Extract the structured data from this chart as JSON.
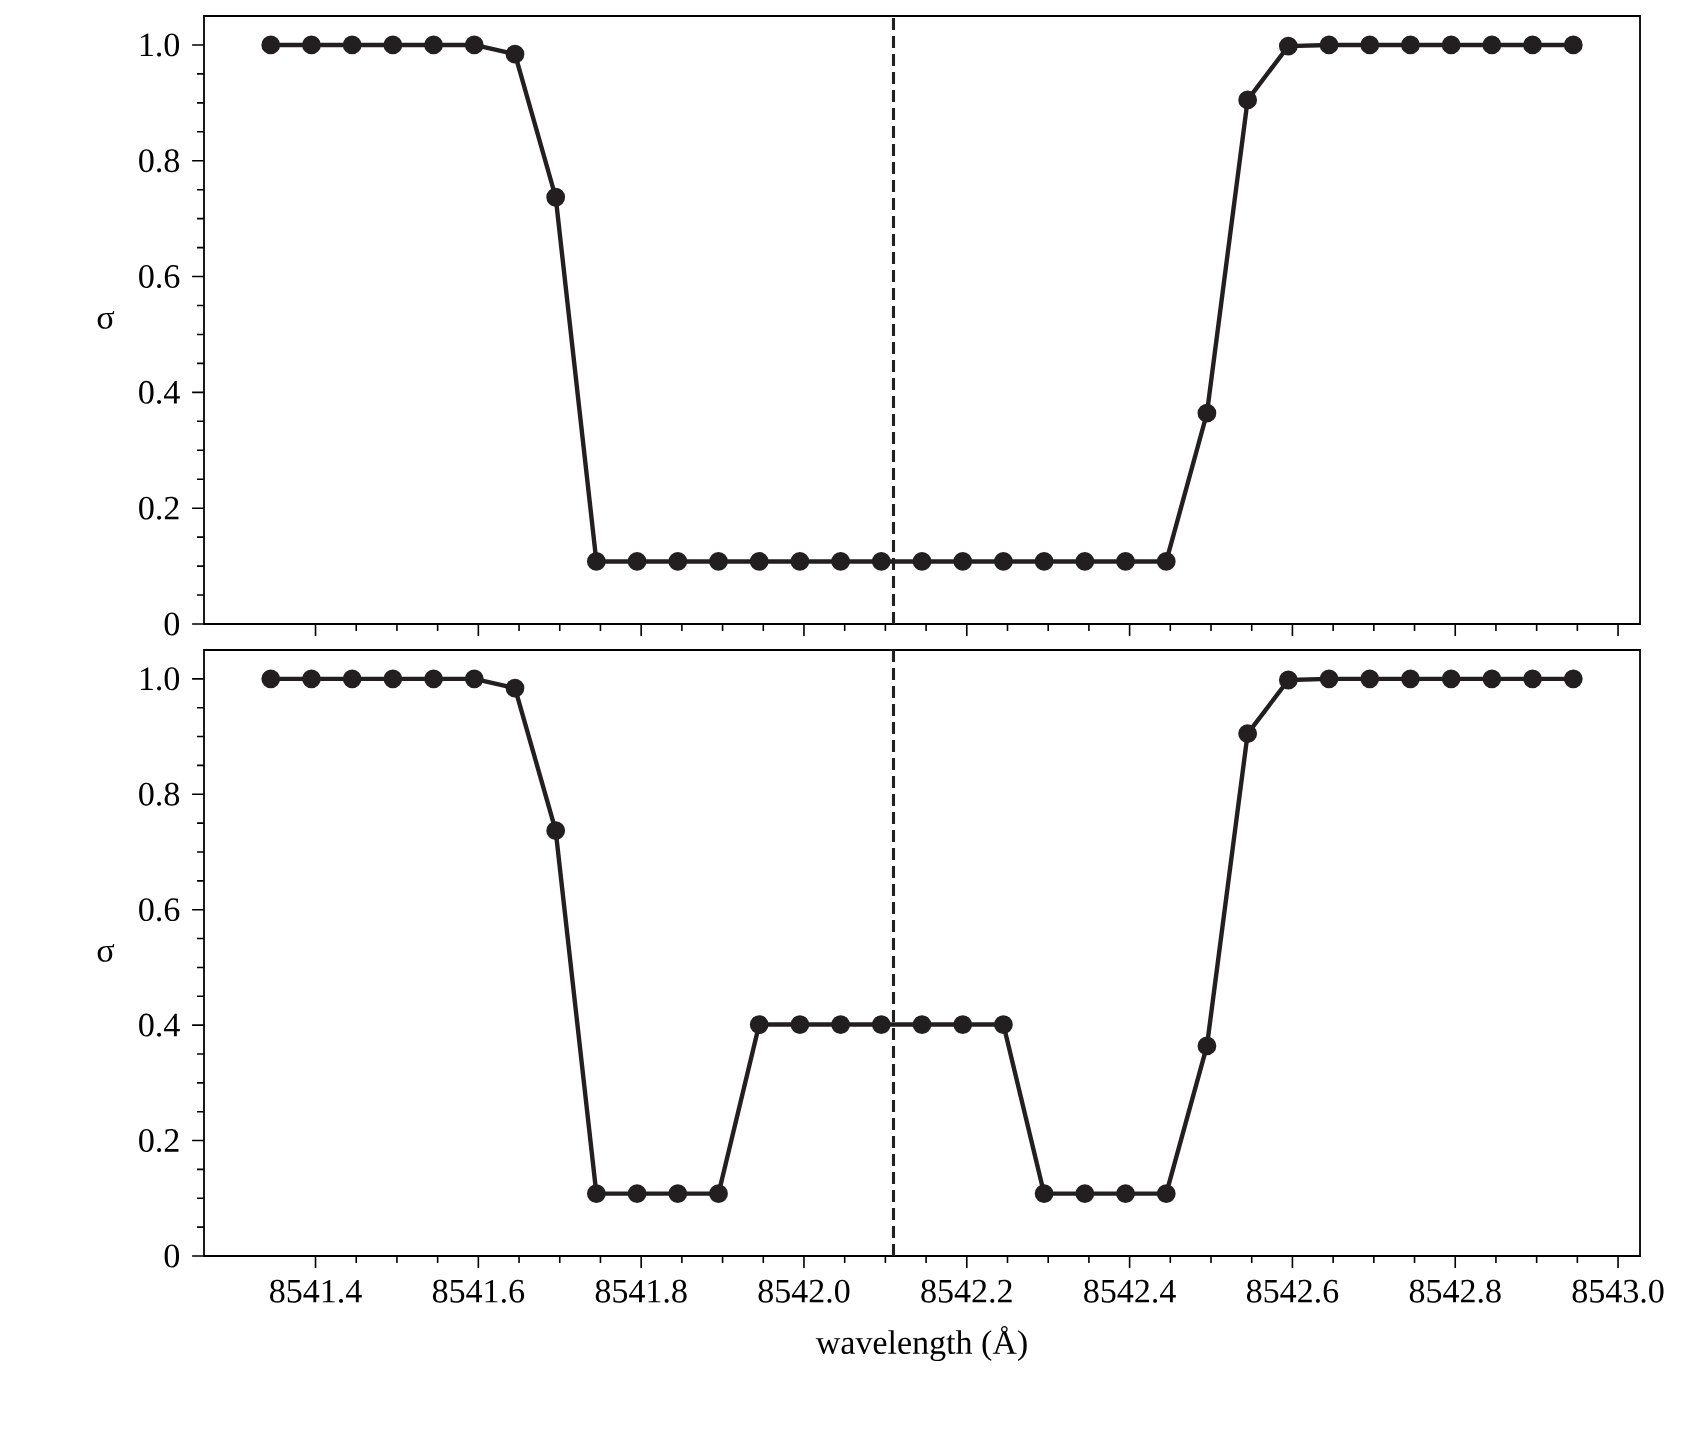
{
  "chart_data": [
    {
      "type": "line",
      "ylabel": "σ",
      "x": [
        8541.345,
        8541.395,
        8541.445,
        8541.495,
        8541.545,
        8541.595,
        8541.645,
        8541.695,
        8541.745,
        8541.795,
        8541.845,
        8541.895,
        8541.945,
        8541.995,
        8542.045,
        8542.095,
        8542.145,
        8542.195,
        8542.245,
        8542.295,
        8542.345,
        8542.395,
        8542.445,
        8542.495,
        8542.545,
        8542.595,
        8542.645,
        8542.695,
        8542.745,
        8542.795,
        8542.845,
        8542.895,
        8542.945
      ],
      "series": [
        {
          "color": "#231f20",
          "values": [
            1,
            1,
            1,
            1,
            1,
            1,
            0.984,
            0.737,
            0.108,
            0.108,
            0.108,
            0.108,
            0.108,
            0.108,
            0.108,
            0.108,
            0.108,
            0.108,
            0.108,
            0.108,
            0.108,
            0.108,
            0.108,
            0.364,
            0.905,
            0.998,
            1,
            1,
            1,
            1,
            1,
            1,
            1
          ]
        }
      ],
      "xlim": [
        8541.263,
        8543.027
      ],
      "ylim": [
        0,
        1.05
      ],
      "xticks": [
        8541.4,
        8541.6,
        8541.8,
        8542,
        8542.2,
        8542.4,
        8542.6,
        8542.8,
        8543
      ],
      "yticks": [
        0,
        0.2,
        0.4,
        0.6,
        0.8,
        {
          "value": 1.0,
          "label": "1.0"
        }
      ],
      "ref_lines": [
        {
          "axis": "x",
          "value": 8542.11,
          "color": "#231f20",
          "line_style": "dashed"
        }
      ],
      "marker": "circle",
      "line_style": "solid",
      "tick_labels": "y"
    },
    {
      "type": "line",
      "ylabel": "σ",
      "xlabel": "wavelength (Å)",
      "x": [
        8541.345,
        8541.395,
        8541.445,
        8541.495,
        8541.545,
        8541.595,
        8541.645,
        8541.695,
        8541.745,
        8541.795,
        8541.845,
        8541.895,
        8541.945,
        8541.995,
        8542.045,
        8542.095,
        8542.145,
        8542.195,
        8542.245,
        8542.295,
        8542.345,
        8542.395,
        8542.445,
        8542.495,
        8542.545,
        8542.595,
        8542.645,
        8542.695,
        8542.745,
        8542.795,
        8542.845,
        8542.895,
        8542.945
      ],
      "series": [
        {
          "color": "#231f20",
          "values": [
            1,
            1,
            1,
            1,
            1,
            1,
            0.984,
            0.737,
            0.108,
            0.108,
            0.108,
            0.108,
            0.401,
            0.401,
            0.401,
            0.401,
            0.401,
            0.401,
            0.401,
            0.108,
            0.108,
            0.108,
            0.108,
            0.364,
            0.905,
            0.998,
            1,
            1,
            1,
            1,
            1,
            1,
            1
          ]
        }
      ],
      "xlim": [
        8541.263,
        8543.027
      ],
      "ylim": [
        0,
        1.05
      ],
      "xticks": [
        8541.4,
        8541.6,
        8541.8,
        {
          "value": 8542.0,
          "label": "8542.0"
        },
        8542.2,
        8542.4,
        8542.6,
        8542.8,
        {
          "value": 8543.0,
          "label": "8543.0"
        }
      ],
      "yticks": [
        0,
        0.2,
        0.4,
        0.6,
        0.8,
        {
          "value": 1.0,
          "label": "1.0"
        }
      ],
      "ref_lines": [
        {
          "axis": "x",
          "value": 8542.11,
          "color": "#231f20",
          "line_style": "dashed"
        }
      ],
      "marker": "circle",
      "line_style": "solid"
    }
  ]
}
